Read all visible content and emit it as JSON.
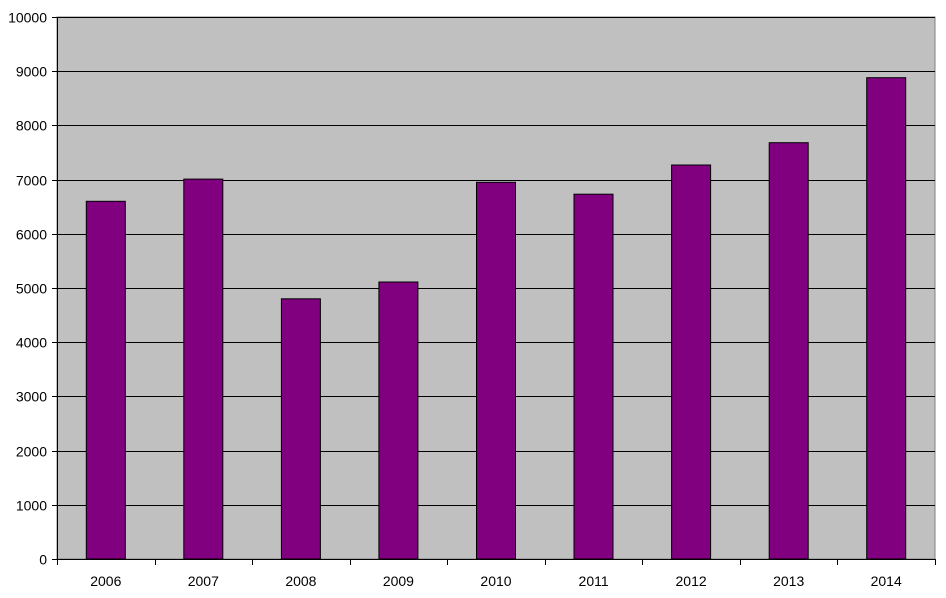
{
  "chart_data": {
    "type": "bar",
    "categories": [
      "2006",
      "2007",
      "2008",
      "2009",
      "2010",
      "2011",
      "2012",
      "2013",
      "2014"
    ],
    "values": [
      6600,
      7010,
      4800,
      5110,
      6950,
      6730,
      7270,
      7680,
      8880
    ],
    "ylim": [
      0,
      10000
    ],
    "yticks": [
      "0",
      "1000",
      "2000",
      "3000",
      "4000",
      "5000",
      "6000",
      "7000",
      "8000",
      "9000",
      "10000"
    ],
    "grid": true,
    "legend": "none"
  },
  "colors": {
    "bar": "#800080",
    "plot_background": "#c0c0c0",
    "grid": "#000000"
  }
}
